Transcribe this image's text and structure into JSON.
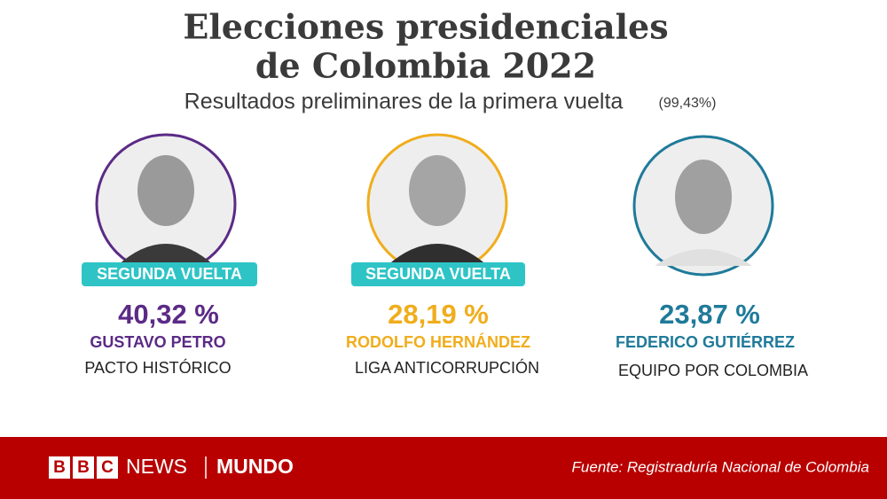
{
  "header": {
    "title_line1": "Elecciones presidenciales",
    "title_line2": "de Colombia 2022",
    "subtitle": "Resultados preliminares de la primera vuelta",
    "count_note": "(99,43%)"
  },
  "candidates": [
    {
      "badge": "SEGUNDA VUELTA",
      "percent": "40,32 %",
      "name": "GUSTAVO PETRO",
      "party": "PACTO HISTÓRICO"
    },
    {
      "badge": "SEGUNDA VUELTA",
      "percent": "28,19 %",
      "name": "RODOLFO HERNÁNDEZ",
      "party": "LIGA ANTICORRUPCIÓN"
    },
    {
      "percent": "23,87 %",
      "name": "FEDERICO GUTIÉRREZ",
      "party": "EQUIPO POR COLOMBIA"
    }
  ],
  "footer": {
    "brand_b1": "B",
    "brand_b2": "B",
    "brand_c": "C",
    "brand_news": "NEWS",
    "brand_mundo": "MUNDO",
    "source": "Fuente: Registraduría Nacional de Colombia"
  }
}
